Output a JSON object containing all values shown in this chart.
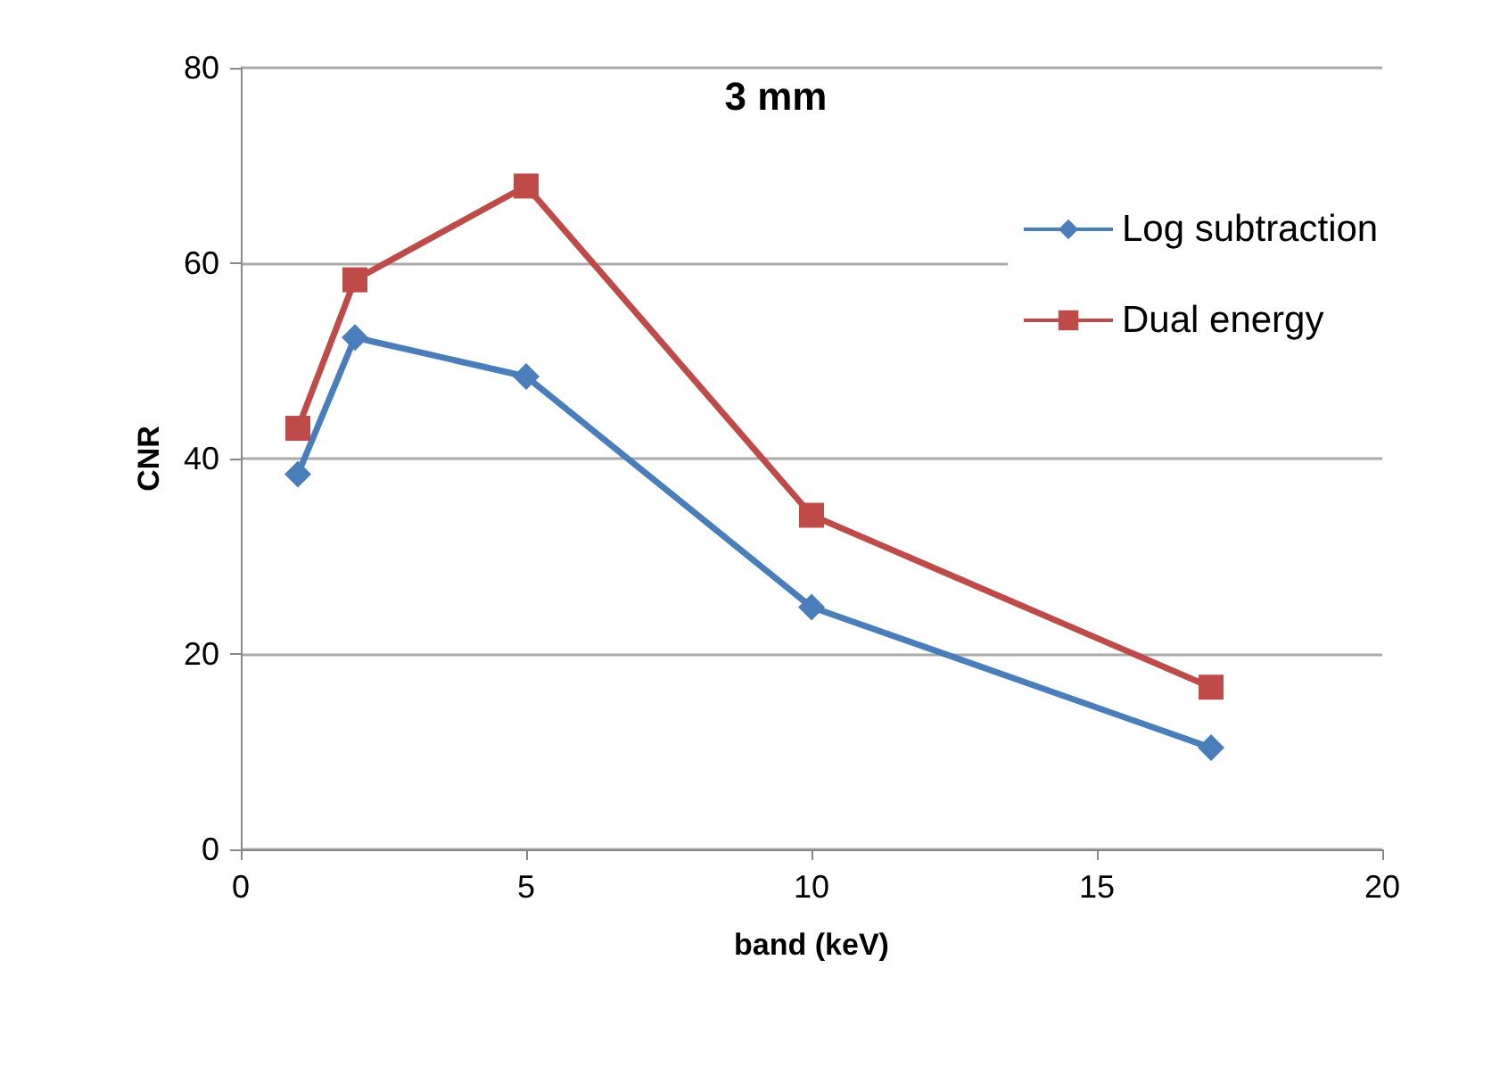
{
  "chart_data": {
    "type": "line",
    "title": "3 mm",
    "xlabel": "band (keV)",
    "ylabel": "CNR",
    "x": [
      1,
      2,
      5,
      10,
      17
    ],
    "series": [
      {
        "name": "Log subtraction",
        "color": "#4a7ebb",
        "marker": "diamond",
        "values": [
          38.4,
          52.4,
          48.4,
          24.8,
          10.4
        ]
      },
      {
        "name": "Dual energy",
        "color": "#be4b48",
        "marker": "square",
        "values": [
          43.1,
          58.3,
          67.9,
          34.2,
          16.6
        ]
      }
    ],
    "xlim": [
      0,
      20
    ],
    "xticks": [
      0,
      5,
      10,
      15,
      20
    ],
    "ylim": [
      0,
      80
    ],
    "yticks": [
      0,
      20,
      40,
      60,
      80
    ],
    "grid": "y",
    "legend": "right",
    "line_style": "solid"
  }
}
